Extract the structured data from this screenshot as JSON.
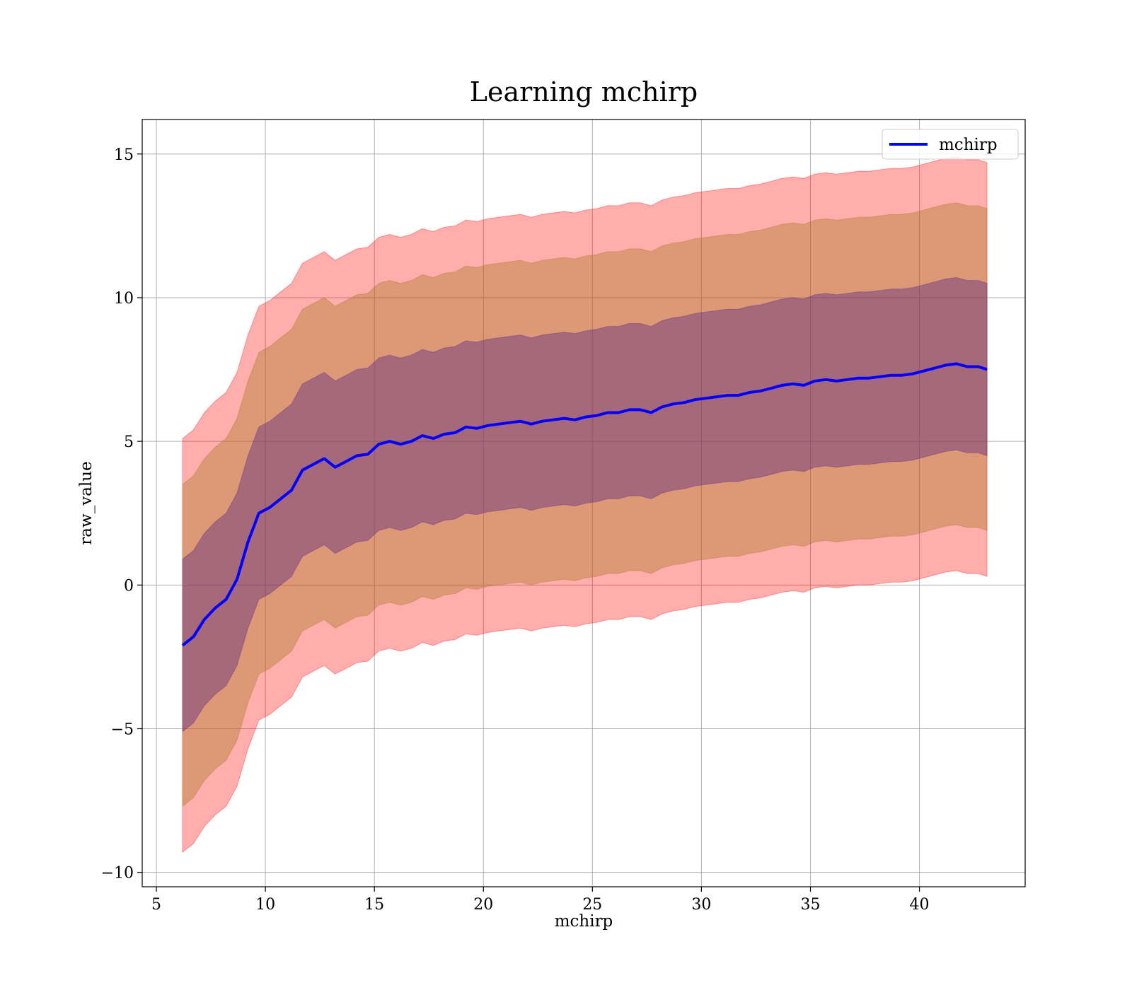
{
  "chart_data": {
    "type": "line",
    "title": "Learning mchirp",
    "xlabel": "mchirp",
    "ylabel": "raw_value",
    "xlim": [
      4.35,
      44.85
    ],
    "ylim": [
      -10.5,
      16.2
    ],
    "xticks": [
      5,
      10,
      15,
      20,
      25,
      30,
      35,
      40
    ],
    "yticks": [
      -10,
      -5,
      0,
      5,
      10,
      15
    ],
    "xtick_labels": [
      "5",
      "10",
      "15",
      "20",
      "25",
      "30",
      "35",
      "40"
    ],
    "ytick_labels": [
      "−10",
      "−5",
      "0",
      "5",
      "10",
      "15"
    ],
    "grid": true,
    "legend": {
      "position": "top-right",
      "entries": [
        "mchirp"
      ]
    },
    "x": [
      6.2,
      6.7,
      7.2,
      7.7,
      8.2,
      8.7,
      9.2,
      9.7,
      10.2,
      10.7,
      11.2,
      11.7,
      12.2,
      12.7,
      13.2,
      13.7,
      14.2,
      14.7,
      15.2,
      15.7,
      16.2,
      16.7,
      17.2,
      17.7,
      18.2,
      18.7,
      19.2,
      19.7,
      20.2,
      20.7,
      21.2,
      21.7,
      22.2,
      22.7,
      23.2,
      23.7,
      24.2,
      24.7,
      25.2,
      25.7,
      26.2,
      26.7,
      27.2,
      27.7,
      28.2,
      28.7,
      29.2,
      29.7,
      30.2,
      30.7,
      31.2,
      31.7,
      32.2,
      32.7,
      33.2,
      33.7,
      34.2,
      34.7,
      35.2,
      35.7,
      36.2,
      36.7,
      37.2,
      37.7,
      38.2,
      38.7,
      39.2,
      39.7,
      40.2,
      40.7,
      41.2,
      41.7,
      42.2,
      42.7,
      43.1
    ],
    "series": [
      {
        "name": "mchirp",
        "color": "#0000ff",
        "values": [
          -2.1,
          -1.8,
          -1.2,
          -0.8,
          -0.5,
          0.2,
          1.5,
          2.5,
          2.7,
          3.0,
          3.3,
          4.0,
          4.2,
          4.4,
          4.1,
          4.3,
          4.5,
          4.55,
          4.9,
          5.0,
          4.9,
          5.0,
          5.2,
          5.1,
          5.25,
          5.3,
          5.5,
          5.45,
          5.55,
          5.6,
          5.65,
          5.7,
          5.6,
          5.7,
          5.75,
          5.8,
          5.75,
          5.85,
          5.9,
          6.0,
          6.0,
          6.1,
          6.1,
          6.0,
          6.2,
          6.3,
          6.35,
          6.45,
          6.5,
          6.55,
          6.6,
          6.6,
          6.7,
          6.75,
          6.85,
          6.95,
          7.0,
          6.95,
          7.1,
          7.15,
          7.1,
          7.15,
          7.2,
          7.2,
          7.25,
          7.3,
          7.3,
          7.35,
          7.45,
          7.55,
          7.65,
          7.7,
          7.6,
          7.6,
          7.5
        ]
      }
    ],
    "bands": [
      {
        "color": "#ff0000",
        "opacity": 0.32,
        "offset": 7.2
      },
      {
        "color": "#aa7722",
        "opacity": 0.4,
        "offset": 5.6
      },
      {
        "color": "#552288",
        "opacity": 0.4,
        "offset": 3.0
      }
    ]
  }
}
